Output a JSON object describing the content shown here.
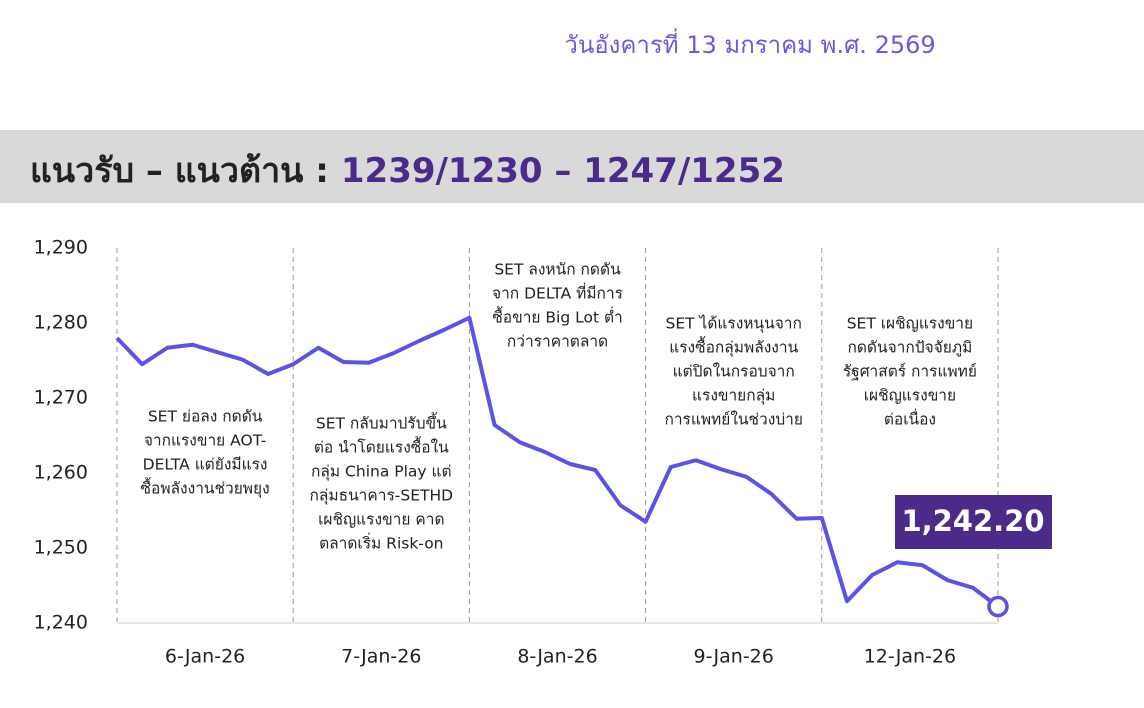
{
  "header": {
    "date": "วันอังคารที่ 13 มกราคม พ.ศ. 2569",
    "title": "แนวรับ – แนวต้าน :",
    "levels": "1239/1230 – 1247/1252"
  },
  "chart_data": {
    "type": "line",
    "categories": [
      "6-Jan-26",
      "7-Jan-26",
      "8-Jan-26",
      "9-Jan-26",
      "12-Jan-26"
    ],
    "values": [
      [
        1278.0,
        1274.5,
        1276.7,
        1277.1,
        1276.1,
        1275.1,
        1273.2,
        1274.5
      ],
      [
        1276.7,
        1274.8,
        1274.7,
        1276.0,
        1277.6,
        1279.1,
        1280.7
      ],
      [
        1266.4,
        1264.1,
        1262.8,
        1261.2,
        1260.4,
        1255.7,
        1253.5
      ],
      [
        1260.8,
        1261.7,
        1260.5,
        1259.5,
        1257.2,
        1253.9,
        1254.0
      ],
      [
        1242.9,
        1246.4,
        1248.1,
        1247.7,
        1245.7,
        1244.7,
        1242.2
      ]
    ],
    "color": "#5b52e8",
    "callout_label": "1,242.20",
    "annotations": [
      [
        "SET ย่อลง กดดัน",
        "จากแรงขาย AOT-",
        "DELTA แต่ยังมีแรง",
        "ซื้อพลังงานช่วยพยุง"
      ],
      [
        "SET กลับมาปรับขึ้น",
        "ต่อ นำโดยแรงซื้อใน",
        "กลุ่ม China Play แต่",
        "กลุ่มธนาคาร-SETHD",
        "เผชิญแรงขาย คาด",
        "ตลาดเริ่ม Risk-on"
      ],
      [
        "SET ลงหนัก กดดัน",
        "จาก DELTA ที่มีการ",
        "ซื้อขาย Big Lot ต่ำ",
        "กว่าราคาตลาด"
      ],
      [
        "SET ได้แรงหนุนจาก",
        "แรงซื้อกลุ่มพลังงาน",
        "แต่ปิดในกรอบจาก",
        "แรงขายกลุ่ม",
        "การแพทย์ในช่วงบ่าย"
      ],
      [
        "SET เผชิญแรงขาย",
        "กดดันจากปัจจัยภูมิ",
        "รัฐศาสตร์ การแพทย์",
        "เผชิญแรงขาย",
        "ต่อเนื่อง"
      ]
    ],
    "ylim": [
      1240,
      1290
    ],
    "yticks": [
      {
        "value": 1240,
        "label": "1,240"
      },
      {
        "value": 1250,
        "label": "1,250"
      },
      {
        "value": 1260,
        "label": "1,260"
      },
      {
        "value": 1270,
        "label": "1,270"
      },
      {
        "value": 1280,
        "label": "1,280"
      },
      {
        "value": 1290,
        "label": "1,290"
      }
    ]
  }
}
